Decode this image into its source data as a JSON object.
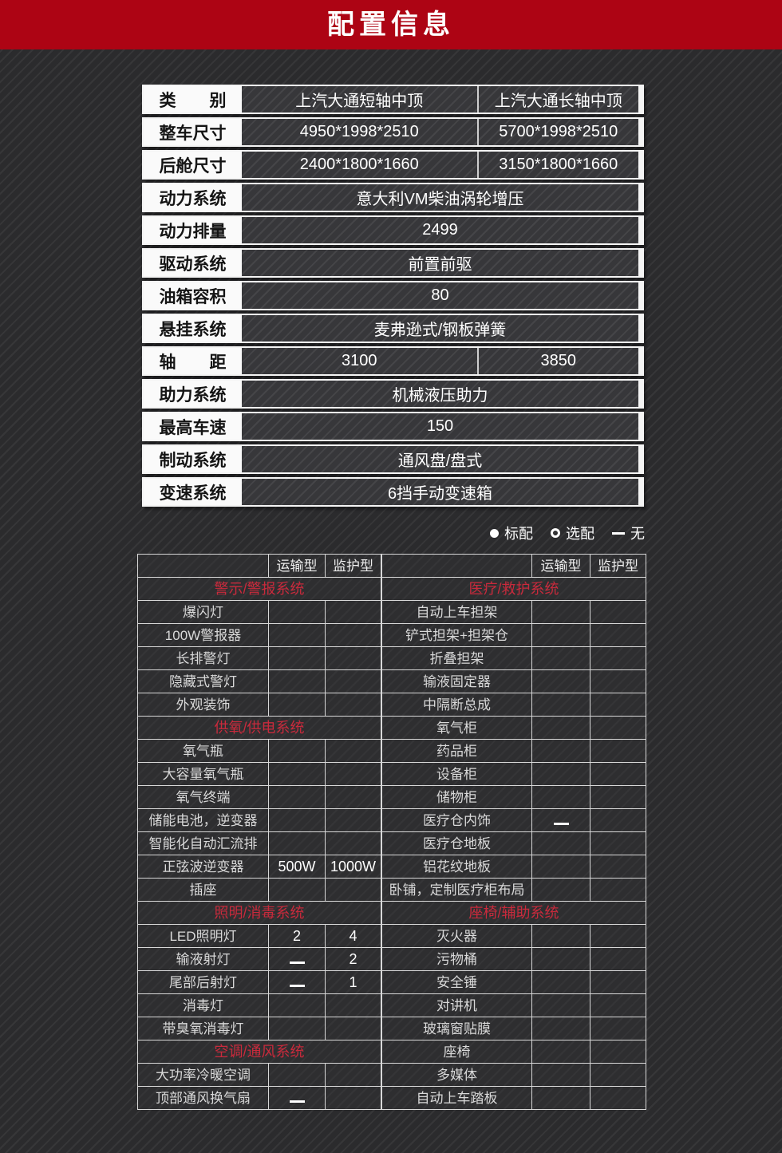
{
  "banner": {
    "title": "配置信息"
  },
  "colors": {
    "banner_red": "#ad0414",
    "section_red": "#c92a3c"
  },
  "spec_table": {
    "rows": [
      {
        "label": "类　　别",
        "values": [
          "上汽大通短轴中顶",
          "上汽大通长轴中顶"
        ]
      },
      {
        "label": "整车尺寸",
        "values": [
          "4950*1998*2510",
          "5700*1998*2510"
        ]
      },
      {
        "label": "后舱尺寸",
        "values": [
          "2400*1800*1660",
          "3150*1800*1660"
        ]
      },
      {
        "label": "动力系统",
        "values": [
          "意大利VM柴油涡轮增压"
        ]
      },
      {
        "label": "动力排量",
        "values": [
          "2499"
        ]
      },
      {
        "label": "驱动系统",
        "values": [
          "前置前驱"
        ]
      },
      {
        "label": "油箱容积",
        "values": [
          "80"
        ]
      },
      {
        "label": "悬挂系统",
        "values": [
          "麦弗逊式/钢板弹簧"
        ]
      },
      {
        "label": "轴　　距",
        "values": [
          "3100",
          "3850"
        ]
      },
      {
        "label": "助力系统",
        "values": [
          "机械液压助力"
        ]
      },
      {
        "label": "最高车速",
        "values": [
          "150"
        ]
      },
      {
        "label": "制动系统",
        "values": [
          "通风盘/盘式"
        ]
      },
      {
        "label": "变速系统",
        "values": [
          "6挡手动变速箱"
        ]
      }
    ]
  },
  "legend": {
    "items": [
      {
        "symbol": "filled",
        "label": "标配"
      },
      {
        "symbol": "open",
        "label": "选配"
      },
      {
        "symbol": "dash",
        "label": "无"
      }
    ]
  },
  "equipment": {
    "column_headers": [
      "运输型",
      "监护型"
    ],
    "left_rows": [
      {
        "section": "警示/警报系统"
      },
      {
        "label": "爆闪灯",
        "values": [
          "filled",
          "filled"
        ]
      },
      {
        "label": "100W警报器",
        "values": [
          "filled",
          "filled"
        ]
      },
      {
        "label": "长排警灯",
        "values": [
          "filled",
          "filled"
        ]
      },
      {
        "label": "隐藏式警灯",
        "values": [
          "open",
          "open"
        ]
      },
      {
        "label": "外观装饰",
        "values": [
          "open",
          "open"
        ]
      },
      {
        "section": "供氧/供电系统"
      },
      {
        "label": "氧气瓶",
        "values": [
          "filled",
          "filled"
        ]
      },
      {
        "label": "大容量氧气瓶",
        "values": [
          "open",
          "open"
        ]
      },
      {
        "label": "氧气终端",
        "values": [
          "filled",
          "filled"
        ]
      },
      {
        "label": "储能电池，逆变器",
        "values": [
          "open",
          "open"
        ]
      },
      {
        "label": "智能化自动汇流排",
        "values": [
          "open",
          "open"
        ]
      },
      {
        "label": "正弦波逆变器",
        "values": [
          "500W",
          "1000W"
        ]
      },
      {
        "label": "插座",
        "values": [
          "filled",
          "filled"
        ]
      },
      {
        "section": "照明/消毒系统"
      },
      {
        "label": "LED照明灯",
        "values": [
          "2",
          "4"
        ]
      },
      {
        "label": "输液射灯",
        "values": [
          "dash",
          "2"
        ]
      },
      {
        "label": "尾部后射灯",
        "values": [
          "dash",
          "1"
        ]
      },
      {
        "label": "消毒灯",
        "values": [
          "filled",
          "filled"
        ]
      },
      {
        "label": "带臭氧消毒灯",
        "values": [
          "open",
          "open"
        ]
      },
      {
        "section": "空调/通风系统"
      },
      {
        "label": "大功率冷暖空调",
        "values": [
          "filled",
          "filled"
        ]
      },
      {
        "label": "顶部通风换气扇",
        "values": [
          "dash",
          "filled"
        ]
      }
    ],
    "right_rows": [
      {
        "section": "医疗/救护系统"
      },
      {
        "label": "自动上车担架",
        "values": [
          "filled",
          "filled"
        ]
      },
      {
        "label": "铲式担架+担架仓",
        "values": [
          "open",
          "open"
        ]
      },
      {
        "label": "折叠担架",
        "values": [
          "open",
          "open"
        ]
      },
      {
        "label": "输液固定器",
        "values": [
          "filled",
          "filled"
        ]
      },
      {
        "label": "中隔断总成",
        "values": [
          "filled",
          "filled"
        ]
      },
      {
        "label": "氧气柜",
        "values": [
          "filled",
          "filled"
        ]
      },
      {
        "label": "药品柜",
        "values": [
          "filled",
          "filled"
        ]
      },
      {
        "label": "设备柜",
        "values": [
          "open",
          "filled"
        ]
      },
      {
        "label": "储物柜",
        "values": [
          "open",
          "filled"
        ]
      },
      {
        "label": "医疗仓内饰",
        "values": [
          "dash",
          "filled"
        ]
      },
      {
        "label": "医疗仓地板",
        "values": [
          "filled",
          "filled"
        ]
      },
      {
        "label": "铝花纹地板",
        "values": [
          "open",
          "open"
        ]
      },
      {
        "label": "卧铺，定制医疗柜布局",
        "values": [
          "open",
          "open"
        ]
      },
      {
        "section": "座椅/辅助系统"
      },
      {
        "label": "灭火器",
        "values": [
          "filled",
          "filled"
        ]
      },
      {
        "label": "污物桶",
        "values": [
          "filled",
          "filled"
        ]
      },
      {
        "label": "安全锤",
        "values": [
          "filled",
          "filled"
        ]
      },
      {
        "label": "对讲机",
        "values": [
          "open",
          "filled"
        ]
      },
      {
        "label": "玻璃窗贴膜",
        "values": [
          "filled",
          "filled"
        ]
      },
      {
        "label": "座椅",
        "values": [
          "filled",
          "filled"
        ]
      },
      {
        "label": "多媒体",
        "values": [
          "open",
          "open"
        ]
      },
      {
        "label": "自动上车踏板",
        "values": [
          "open",
          "open"
        ]
      }
    ]
  }
}
